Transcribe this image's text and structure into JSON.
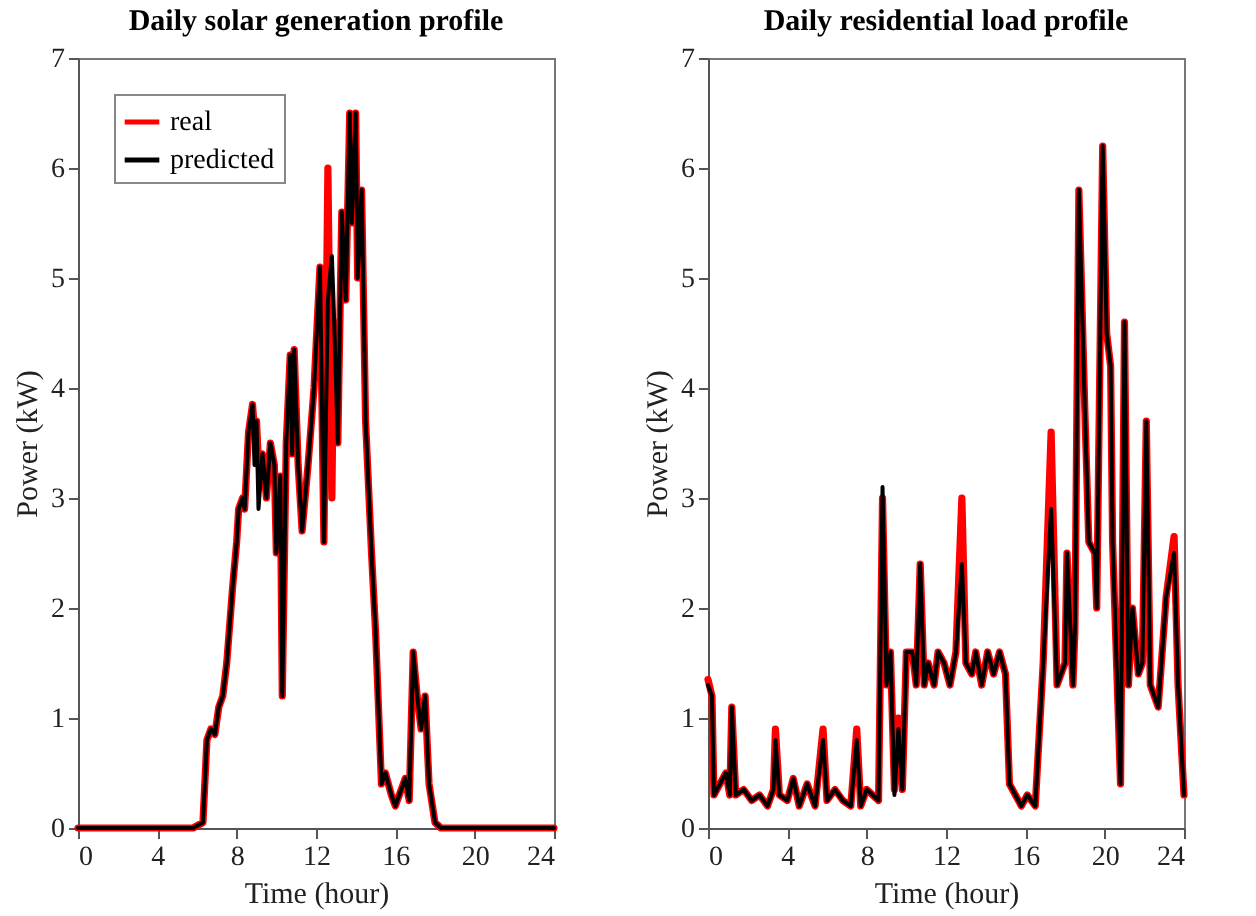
{
  "chart_data": [
    {
      "type": "line",
      "title": "Daily solar generation profile",
      "xlabel": "Time (hour)",
      "ylabel": "Power (kW)",
      "xlim": [
        0,
        24
      ],
      "xticks": [
        0,
        4,
        8,
        12,
        16,
        20,
        24
      ],
      "ylim": [
        0,
        7
      ],
      "yticks": [
        0,
        1,
        2,
        3,
        4,
        5,
        6,
        7
      ],
      "legend": "top left",
      "grid": false,
      "x": [
        0,
        5.8,
        6.3,
        6.5,
        6.7,
        6.9,
        7.1,
        7.3,
        7.5,
        7.8,
        8.0,
        8.1,
        8.3,
        8.4,
        8.6,
        8.8,
        8.9,
        9.0,
        9.1,
        9.3,
        9.5,
        9.7,
        9.9,
        10.0,
        10.2,
        10.3,
        10.5,
        10.7,
        10.8,
        10.9,
        11.1,
        11.3,
        11.6,
        11.9,
        12.2,
        12.4,
        12.6,
        12.8,
        12.9,
        13.1,
        13.3,
        13.5,
        13.7,
        13.8,
        14.0,
        14.1,
        14.3,
        14.5,
        14.8,
        15.0,
        15.3,
        15.5,
        15.8,
        16.0,
        16.3,
        16.5,
        16.7,
        16.9,
        17.1,
        17.3,
        17.5,
        17.7,
        18.0,
        18.3,
        24
      ],
      "series": [
        {
          "name": "real",
          "color": "#ff0000",
          "values": [
            0,
            0,
            0.05,
            0.8,
            0.9,
            0.85,
            1.1,
            1.2,
            1.5,
            2.2,
            2.6,
            2.9,
            3.0,
            2.9,
            3.6,
            3.85,
            3.6,
            3.7,
            3.3,
            3.4,
            3.0,
            3.5,
            3.3,
            2.5,
            3.2,
            1.2,
            3.5,
            4.3,
            3.4,
            4.35,
            3.3,
            2.7,
            3.3,
            4.0,
            5.1,
            2.6,
            6.0,
            3.0,
            4.6,
            3.5,
            5.6,
            4.8,
            6.5,
            5.5,
            6.5,
            5.0,
            5.8,
            3.7,
            2.5,
            1.8,
            0.4,
            0.5,
            0.3,
            0.2,
            0.35,
            0.45,
            0.25,
            1.6,
            1.2,
            0.9,
            1.2,
            0.4,
            0.05,
            0,
            0
          ]
        },
        {
          "name": "predicted",
          "color": "#000000",
          "values": [
            0,
            0,
            0.05,
            0.8,
            0.9,
            0.85,
            1.1,
            1.2,
            1.5,
            2.2,
            2.6,
            2.9,
            3.0,
            2.9,
            3.6,
            3.85,
            3.3,
            3.7,
            2.9,
            3.4,
            3.0,
            3.5,
            3.3,
            2.5,
            3.2,
            1.2,
            3.5,
            4.3,
            3.4,
            4.35,
            3.3,
            2.7,
            3.3,
            4.0,
            5.1,
            2.6,
            4.8,
            5.2,
            4.7,
            3.5,
            5.6,
            4.8,
            6.5,
            5.5,
            6.5,
            5.0,
            5.8,
            3.7,
            2.5,
            1.8,
            0.4,
            0.5,
            0.3,
            0.2,
            0.35,
            0.45,
            0.25,
            1.6,
            1.2,
            0.9,
            1.2,
            0.4,
            0.05,
            0,
            0
          ]
        }
      ]
    },
    {
      "type": "line",
      "title": "Daily residential load profile",
      "xlabel": "Time (hour)",
      "ylabel": "Power (kW)",
      "xlim": [
        0,
        24
      ],
      "xticks": [
        0,
        4,
        8,
        12,
        16,
        20,
        24
      ],
      "ylim": [
        0,
        7
      ],
      "yticks": [
        0,
        1,
        2,
        3,
        4,
        5,
        6,
        7
      ],
      "legend": "top left",
      "grid": false,
      "x": [
        0,
        0.2,
        0.3,
        0.6,
        0.9,
        1.1,
        1.2,
        1.4,
        1.8,
        2.2,
        2.6,
        3.0,
        3.3,
        3.4,
        3.6,
        4.0,
        4.3,
        4.6,
        5.0,
        5.4,
        5.8,
        6.0,
        6.4,
        6.8,
        7.2,
        7.5,
        7.7,
        8.0,
        8.3,
        8.6,
        8.8,
        9.0,
        9.2,
        9.4,
        9.6,
        9.8,
        10.0,
        10.3,
        10.5,
        10.7,
        10.9,
        11.1,
        11.4,
        11.6,
        11.9,
        12.2,
        12.5,
        12.8,
        13.0,
        13.3,
        13.5,
        13.8,
        14.1,
        14.4,
        14.7,
        15.0,
        15.2,
        15.5,
        15.8,
        16.1,
        16.5,
        16.9,
        17.3,
        17.6,
        18.0,
        18.1,
        18.4,
        18.5,
        18.7,
        19.0,
        19.2,
        19.5,
        19.6,
        19.9,
        20.1,
        20.3,
        20.4,
        20.8,
        21.0,
        21.2,
        21.4,
        21.7,
        21.9,
        22.1,
        22.3,
        22.7,
        23.1,
        23.5,
        23.7,
        24
      ],
      "series": [
        {
          "name": "real",
          "color": "#ff0000",
          "values": [
            1.35,
            1.2,
            0.3,
            0.4,
            0.5,
            0.3,
            1.1,
            0.3,
            0.35,
            0.25,
            0.3,
            0.2,
            0.35,
            0.9,
            0.3,
            0.25,
            0.45,
            0.2,
            0.4,
            0.2,
            0.9,
            0.25,
            0.35,
            0.25,
            0.2,
            0.9,
            0.2,
            0.35,
            0.3,
            0.25,
            3.0,
            1.3,
            1.6,
            0.35,
            1.0,
            0.35,
            1.6,
            1.6,
            1.3,
            2.4,
            1.3,
            1.5,
            1.3,
            1.6,
            1.5,
            1.3,
            1.6,
            3.0,
            1.5,
            1.4,
            1.6,
            1.3,
            1.6,
            1.4,
            1.6,
            1.4,
            0.4,
            0.3,
            0.2,
            0.3,
            0.2,
            1.5,
            3.6,
            1.3,
            1.5,
            2.5,
            1.3,
            1.8,
            5.8,
            3.8,
            2.6,
            2.5,
            2.0,
            6.2,
            4.5,
            4.2,
            2.6,
            0.4,
            4.6,
            1.3,
            2.0,
            1.4,
            1.5,
            3.7,
            1.3,
            1.1,
            2.1,
            2.65,
            1.3,
            0.3
          ]
        },
        {
          "name": "predicted",
          "color": "#000000",
          "values": [
            1.3,
            1.2,
            0.3,
            0.4,
            0.5,
            0.3,
            1.1,
            0.3,
            0.35,
            0.25,
            0.3,
            0.2,
            0.35,
            0.8,
            0.3,
            0.25,
            0.45,
            0.2,
            0.4,
            0.2,
            0.8,
            0.25,
            0.35,
            0.25,
            0.2,
            0.8,
            0.2,
            0.35,
            0.3,
            0.25,
            3.1,
            1.3,
            1.6,
            0.3,
            0.9,
            0.35,
            1.6,
            1.6,
            1.3,
            2.4,
            1.3,
            1.5,
            1.3,
            1.6,
            1.5,
            1.3,
            1.6,
            2.4,
            1.5,
            1.4,
            1.6,
            1.3,
            1.6,
            1.4,
            1.6,
            1.4,
            0.4,
            0.3,
            0.2,
            0.3,
            0.2,
            1.5,
            2.9,
            1.3,
            1.5,
            2.5,
            1.3,
            1.8,
            5.8,
            3.8,
            2.6,
            2.5,
            2.0,
            6.2,
            4.5,
            4.2,
            2.6,
            0.4,
            4.6,
            1.3,
            2.0,
            1.4,
            1.5,
            3.7,
            1.3,
            1.1,
            2.1,
            2.5,
            1.3,
            0.3
          ]
        }
      ]
    }
  ]
}
